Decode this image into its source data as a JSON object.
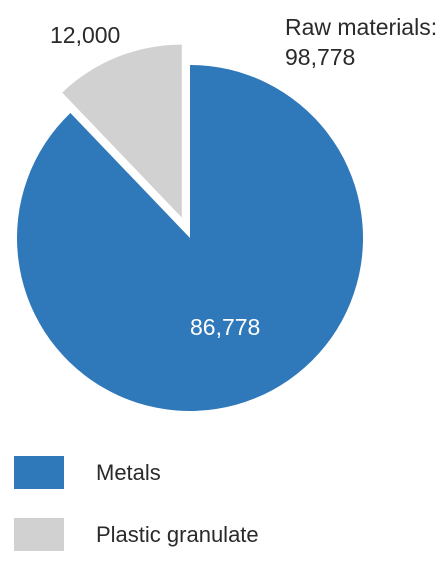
{
  "chart_data": {
    "type": "pie",
    "exploded": "Plastic granulate",
    "slices": [
      {
        "label": "Metals",
        "value": 86778,
        "value_label": "86,778",
        "color": "#2f78ba"
      },
      {
        "label": "Plastic granulate",
        "value": 12000,
        "value_label": "12,000",
        "color": "#d1d1d1"
      }
    ],
    "total_label": "Raw materials:",
    "total_value": "98,778",
    "legend": [
      {
        "label": "Metals",
        "color": "#2f78ba"
      },
      {
        "label": "Plastic granulate",
        "color": "#d1d1d1"
      }
    ],
    "legend_position": "bottom-left"
  }
}
